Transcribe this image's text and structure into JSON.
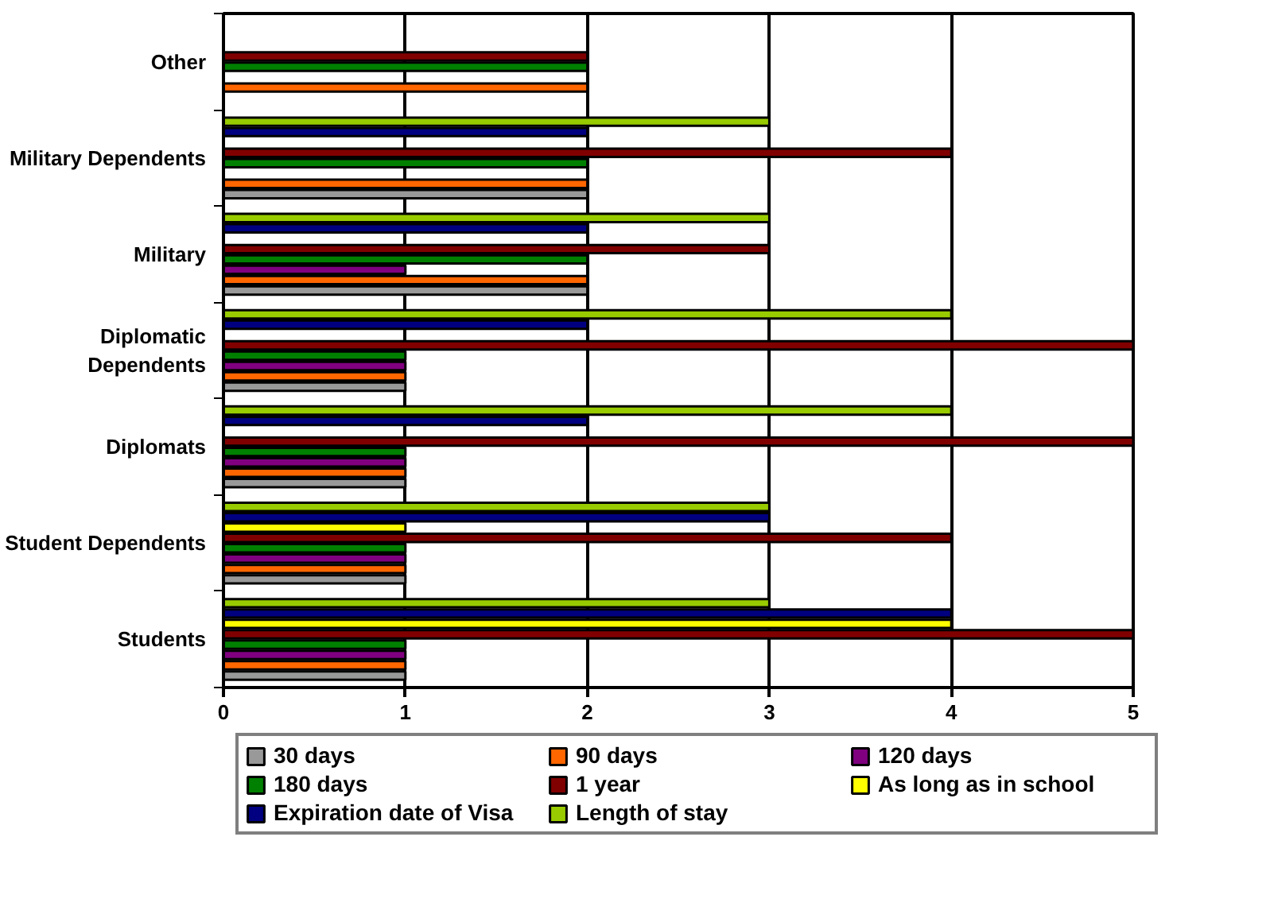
{
  "chart_data": {
    "type": "bar",
    "orientation": "horizontal",
    "categories": [
      "Other",
      "Military Dependents",
      "Military",
      "Diplomatic Dependents",
      "Diplomats",
      "Student Dependents",
      "Students"
    ],
    "series": [
      {
        "name": "30 days",
        "color": "#999999",
        "values": [
          null,
          2,
          2,
          1,
          1,
          1,
          1
        ]
      },
      {
        "name": "90 days",
        "color": "#ff6600",
        "values": [
          2,
          2,
          2,
          1,
          1,
          1,
          1
        ]
      },
      {
        "name": "120 days",
        "color": "#800080",
        "values": [
          null,
          null,
          1,
          1,
          1,
          1,
          1
        ]
      },
      {
        "name": "180 days",
        "color": "#008000",
        "values": [
          2,
          2,
          2,
          1,
          1,
          1,
          1
        ]
      },
      {
        "name": "1 year",
        "color": "#800000",
        "values": [
          2,
          4,
          3,
          5,
          5,
          4,
          5
        ]
      },
      {
        "name": "As long as in school",
        "color": "#ffff00",
        "values": [
          null,
          null,
          null,
          null,
          null,
          1,
          4
        ]
      },
      {
        "name": "Expiration date of Visa",
        "color": "#000080",
        "values": [
          null,
          2,
          2,
          2,
          2,
          3,
          4
        ]
      },
      {
        "name": "Length of stay",
        "color": "#99cc00",
        "values": [
          null,
          3,
          3,
          4,
          4,
          3,
          3
        ]
      }
    ],
    "xlim": [
      0,
      5
    ],
    "xticks": [
      0,
      1,
      2,
      3,
      4,
      5
    ],
    "grid": "x",
    "legend": "bottom"
  }
}
